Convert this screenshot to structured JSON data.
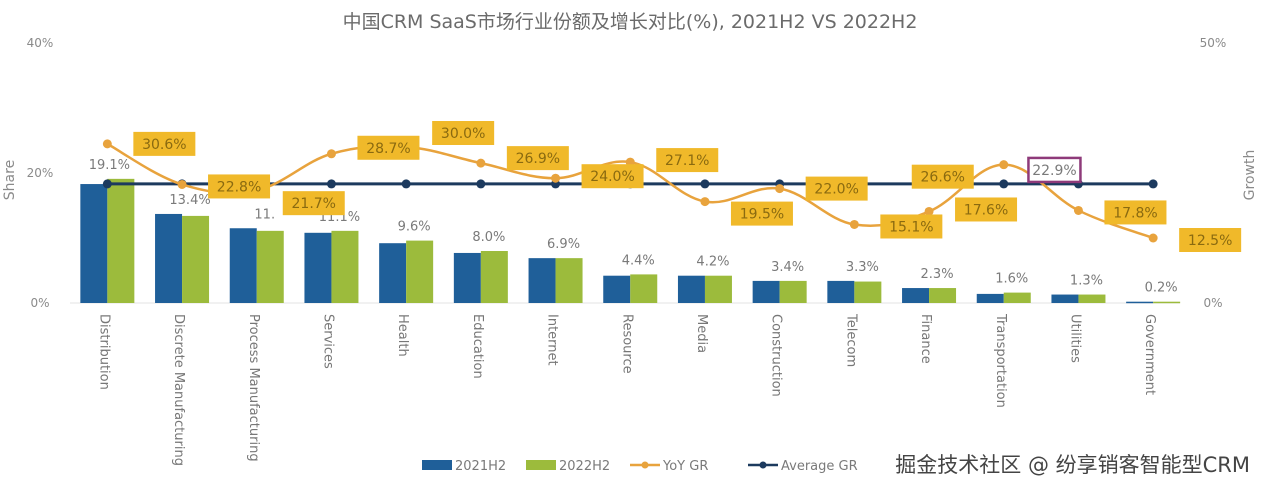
{
  "chart_data": {
    "type": "bar",
    "title": "中国CRM SaaS市场行业份额及增长对比(%), 2021H2 VS 2022H2",
    "ylabel": "Share",
    "y2label": "Growth",
    "ylim": [
      0,
      40
    ],
    "y2lim": [
      0,
      50
    ],
    "yticks": [
      "0%",
      "20%",
      "40%"
    ],
    "y2ticks": [
      "0%",
      "50%"
    ],
    "grid": false,
    "legend_position": "bottom-center",
    "categories": [
      "Distribution",
      "Discrete Manufacturing",
      "Process Manufacturing",
      "Services",
      "Health",
      "Education",
      "Internet",
      "Resource",
      "Media",
      "Construction",
      "Telecom",
      "Finance",
      "Transportation",
      "Utilities",
      "Government"
    ],
    "series": [
      {
        "name": "2021H2",
        "type": "bar",
        "axis": "left",
        "color": "#1f5f99",
        "values": [
          18.3,
          13.7,
          11.5,
          10.8,
          9.2,
          7.7,
          6.9,
          4.2,
          4.2,
          3.4,
          3.4,
          2.3,
          1.4,
          1.3,
          0.2
        ]
      },
      {
        "name": "2022H2",
        "type": "bar",
        "axis": "left",
        "color": "#9cbb3c",
        "values": [
          19.1,
          13.4,
          11.1,
          11.1,
          9.6,
          8.0,
          6.9,
          4.4,
          4.2,
          3.4,
          3.3,
          2.3,
          1.6,
          1.3,
          0.2
        ],
        "labels": [
          "19.1%",
          "13.4%",
          "11.",
          "11.1%",
          "9.6%",
          "8.0%",
          "6.9%",
          "4.4%",
          "4.2%",
          "3.4%",
          "3.3%",
          "2.3%",
          "1.6%",
          "1.3%",
          "0.2%"
        ]
      },
      {
        "name": "YoY GR",
        "type": "line",
        "axis": "right",
        "color": "#e8a33d",
        "values": [
          30.6,
          22.8,
          21.7,
          28.7,
          30.0,
          26.9,
          24.0,
          27.1,
          19.5,
          22.0,
          15.1,
          17.6,
          26.6,
          17.8,
          12.5
        ],
        "labels": [
          "30.6%",
          "22.8%",
          "21.7%",
          "28.7%",
          "30.0%",
          "26.9%",
          "24.0%",
          "27.1%",
          "19.5%",
          "22.0%",
          "15.1%",
          "17.6%",
          "26.6%",
          "17.8%",
          "12.5%"
        ]
      },
      {
        "name": "Average GR",
        "type": "line",
        "axis": "right",
        "color": "#1c3a5e",
        "values": [
          22.9,
          22.9,
          22.9,
          22.9,
          22.9,
          22.9,
          22.9,
          22.9,
          22.9,
          22.9,
          22.9,
          22.9,
          22.9,
          22.9,
          22.9
        ],
        "label": "22.9%"
      }
    ],
    "legend": [
      "2021H2",
      "2022H2",
      "YoY GR",
      "Average GR"
    ]
  },
  "watermark": "掘金技术社区 @ 纷享销客智能型CRM",
  "colors": {
    "label_box": "#f0b92a",
    "avg_label_border": "#8e3a7a"
  }
}
